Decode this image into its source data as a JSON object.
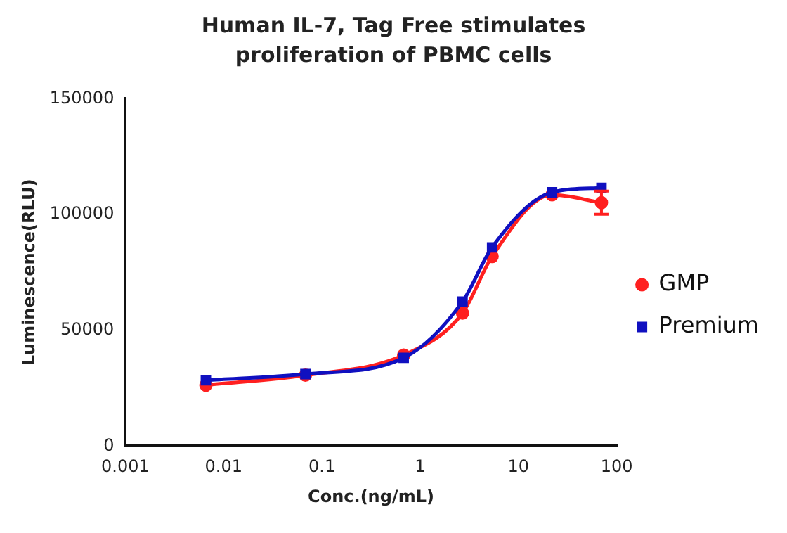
{
  "chart_data": {
    "type": "line",
    "title": "Human IL-7, Tag Free stimulates\nproliferation of PBMC cells",
    "xlabel": "Conc.(ng/mL)",
    "ylabel": "Luminescence(RLU)",
    "log": "x",
    "xlim": [
      0.001,
      100
    ],
    "xticks": [
      0.001,
      0.01,
      0.1,
      1,
      10,
      100
    ],
    "ylim": [
      0,
      150000
    ],
    "yticks": [
      0,
      50000,
      100000,
      150000
    ],
    "grid": false,
    "legend": "right",
    "line_style": "solid",
    "series": [
      {
        "name": "GMP",
        "color": "#ff2020",
        "marker": "circle",
        "x": [
          0.0066,
          0.068,
          0.68,
          2.7,
          5.4,
          22,
          70
        ],
        "values": [
          26300,
          30600,
          39300,
          57400,
          81900,
          108500,
          105100
        ],
        "errors": [
          null,
          null,
          null,
          null,
          null,
          null,
          5000
        ]
      },
      {
        "name": "Premium",
        "color": "#1010c0",
        "marker": "square",
        "x": [
          0.0066,
          0.068,
          0.68,
          2.7,
          5.4,
          22,
          70
        ],
        "values": [
          28400,
          31100,
          38100,
          62400,
          85800,
          109600,
          111500
        ]
      }
    ]
  }
}
